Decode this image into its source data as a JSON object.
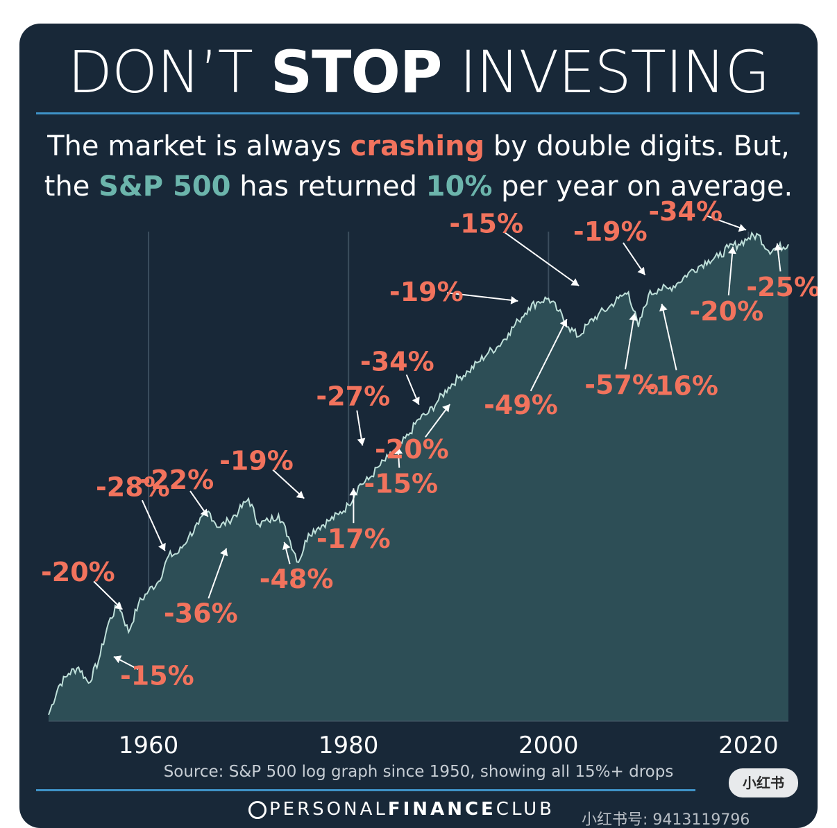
{
  "header": {
    "title_part1": "DON’T ",
    "title_bold": "STOP",
    "title_part2": " INVESTING",
    "subtitle_line1_a": "The market is always ",
    "subtitle_line1_red": "crashing",
    "subtitle_line1_b": " by double digits. But,",
    "subtitle_line2_a": "the ",
    "subtitle_line2_teal": "S&P 500",
    "subtitle_line2_b": " has returned ",
    "subtitle_line2_teal2": "10%",
    "subtitle_line2_c": " per year on average."
  },
  "footer": {
    "source": "Source: S&P 500 log graph since 1950, showing all 15%+ drops",
    "brand_a": "PERSONAL",
    "brand_b": "FINANCE",
    "brand_c": "CLUB",
    "badge": "小红书",
    "watermark": "小红书号: 9413119796"
  },
  "colors": {
    "background": "#182838",
    "area_fill": "#2d4e56",
    "line": "#bfe0da",
    "drop_label": "#f2735d",
    "accent_teal": "#6cb5ac",
    "rule": "#3f93c8"
  },
  "chart_data": {
    "type": "area",
    "title": "DON’T STOP INVESTING",
    "x_ticks": [
      1960,
      1980,
      2000,
      2020
    ],
    "xlim": [
      1950,
      2024
    ],
    "ylim": [
      -0.2,
      15.2
    ],
    "y_scale_note": "log graph",
    "grid": "vertical lines at x ticks",
    "series": [
      {
        "points": [
          [
            1950,
            0.0
          ],
          [
            1951,
            0.9
          ],
          [
            1952,
            1.3
          ],
          [
            1953,
            1.5
          ],
          [
            1954,
            1.0
          ],
          [
            1955,
            1.7
          ],
          [
            1956,
            2.9
          ],
          [
            1957,
            3.5
          ],
          [
            1958,
            2.6
          ],
          [
            1959,
            3.5
          ],
          [
            1960,
            3.9
          ],
          [
            1961,
            4.2
          ],
          [
            1962,
            5.0
          ],
          [
            1963,
            5.1
          ],
          [
            1964,
            5.6
          ],
          [
            1965,
            6.0
          ],
          [
            1966,
            6.4
          ],
          [
            1967,
            5.9
          ],
          [
            1968,
            6.1
          ],
          [
            1969,
            6.4
          ],
          [
            1970,
            6.8
          ],
          [
            1971,
            6.0
          ],
          [
            1972,
            6.1
          ],
          [
            1973,
            6.3
          ],
          [
            1974,
            5.6
          ],
          [
            1975,
            4.8
          ],
          [
            1976,
            5.7
          ],
          [
            1977,
            5.9
          ],
          [
            1978,
            6.1
          ],
          [
            1979,
            6.3
          ],
          [
            1980,
            6.6
          ],
          [
            1981,
            7.2
          ],
          [
            1982,
            7.4
          ],
          [
            1983,
            7.8
          ],
          [
            1984,
            8.1
          ],
          [
            1985,
            8.4
          ],
          [
            1986,
            8.8
          ],
          [
            1987,
            9.3
          ],
          [
            1988,
            9.5
          ],
          [
            1989,
            9.9
          ],
          [
            1990,
            10.3
          ],
          [
            1991,
            10.6
          ],
          [
            1992,
            10.8
          ],
          [
            1993,
            11.1
          ],
          [
            1994,
            11.4
          ],
          [
            1995,
            11.6
          ],
          [
            1996,
            12.0
          ],
          [
            1997,
            12.4
          ],
          [
            1998,
            12.8
          ],
          [
            1999,
            13.0
          ],
          [
            2000,
            13.1
          ],
          [
            2001,
            12.7
          ],
          [
            2002,
            12.2
          ],
          [
            2003,
            11.9
          ],
          [
            2004,
            12.3
          ],
          [
            2005,
            12.6
          ],
          [
            2006,
            12.8
          ],
          [
            2007,
            13.1
          ],
          [
            2008,
            13.3
          ],
          [
            2009,
            12.2
          ],
          [
            2010,
            13.2
          ],
          [
            2011,
            13.4
          ],
          [
            2012,
            13.4
          ],
          [
            2013,
            13.6
          ],
          [
            2014,
            13.9
          ],
          [
            2015,
            14.1
          ],
          [
            2016,
            14.3
          ],
          [
            2017,
            14.4
          ],
          [
            2018,
            14.7
          ],
          [
            2019,
            14.8
          ],
          [
            2020,
            15.0
          ],
          [
            2021,
            15.1
          ],
          [
            2022,
            14.6
          ],
          [
            2023,
            14.7
          ],
          [
            2024,
            14.8
          ]
        ]
      }
    ],
    "annotations": [
      {
        "text": "-15%",
        "x": 1956.0,
        "y": 1.9
      },
      {
        "text": "-20%",
        "x": 1957.8,
        "y": 3.2
      },
      {
        "text": "-28%",
        "x": 1961.9,
        "y": 5.0
      },
      {
        "text": "-22%",
        "x": 1966.3,
        "y": 6.1
      },
      {
        "text": "-36%",
        "x": 1968.0,
        "y": 5.4
      },
      {
        "text": "-48%",
        "x": 1973.4,
        "y": 5.6
      },
      {
        "text": "-19%",
        "x": 1976.0,
        "y": 6.7
      },
      {
        "text": "-17%",
        "x": 1980.5,
        "y": 7.3
      },
      {
        "text": "-27%",
        "x": 1981.5,
        "y": 8.3
      },
      {
        "text": "-15%",
        "x": 1984.9,
        "y": 8.6
      },
      {
        "text": "-34%",
        "x": 1987.3,
        "y": 9.6
      },
      {
        "text": "-20%",
        "x": 1990.5,
        "y": 9.9
      },
      {
        "text": "-19%",
        "x": 1997.5,
        "y": 13.0
      },
      {
        "text": "-49%",
        "x": 2002.1,
        "y": 12.6
      },
      {
        "text": "-15%",
        "x": 2003.5,
        "y": 13.4
      },
      {
        "text": "-19%",
        "x": 2010.0,
        "y": 13.7
      },
      {
        "text": "-57%",
        "x": 2008.7,
        "y": 12.8
      },
      {
        "text": "-16%",
        "x": 2011.2,
        "y": 13.1
      },
      {
        "text": "-20%",
        "x": 2018.5,
        "y": 14.9
      },
      {
        "text": "-34%",
        "x": 2020.3,
        "y": 15.2
      },
      {
        "text": "-25%",
        "x": 2022.8,
        "y": 15.0
      }
    ]
  }
}
